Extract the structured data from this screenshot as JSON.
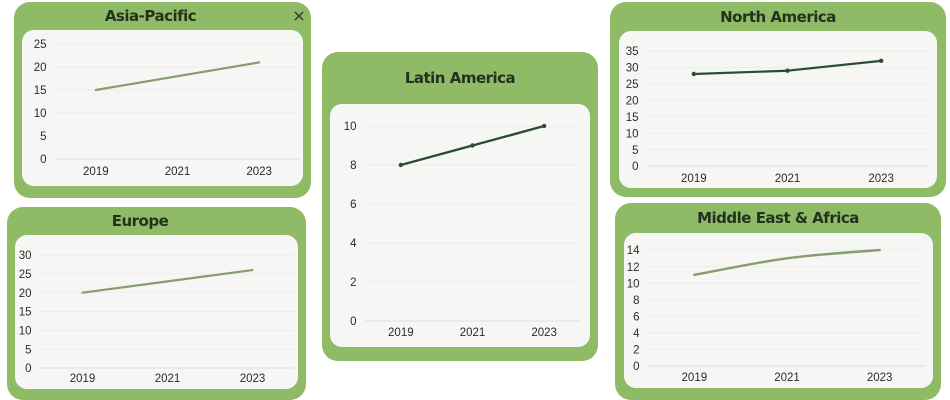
{
  "page": {
    "background": "#ffffff"
  },
  "theme": {
    "card_green": "#90BB66",
    "panel_bg": "#F6F7F5",
    "grid_color": "#ECEDE8",
    "baseline_color": "#DCDFD8",
    "title_color": "#223220",
    "tick_color": "#2B2B2B",
    "close_icon_color": "#333B2D"
  },
  "cards": [
    {
      "title": "Asia-Pacific",
      "has_close_button": true
    },
    {
      "title": "Europe",
      "has_close_button": false
    },
    {
      "title": "Latin America",
      "has_close_button": false
    },
    {
      "title": "North America",
      "has_close_button": false
    },
    {
      "title": "Middle East & Africa",
      "has_close_button": false
    }
  ],
  "chart_data": [
    {
      "type": "line",
      "title": "Asia-Pacific",
      "categories": [
        "2019",
        "2021",
        "2023"
      ],
      "values": [
        15,
        18,
        21
      ],
      "ylim": [
        0,
        25
      ],
      "ytick_step": 5,
      "line_color": "#859E6C",
      "markers": false,
      "grid": true,
      "legend": false,
      "xlabel": "",
      "ylabel": ""
    },
    {
      "type": "line",
      "title": "Europe",
      "categories": [
        "2019",
        "2021",
        "2023"
      ],
      "values": [
        20,
        23,
        26
      ],
      "ylim": [
        0,
        30
      ],
      "ytick_step": 5,
      "line_color": "#859E6C",
      "markers": false,
      "grid": true,
      "legend": false,
      "xlabel": "",
      "ylabel": ""
    },
    {
      "type": "line",
      "title": "Latin America",
      "categories": [
        "2019",
        "2021",
        "2023"
      ],
      "values": [
        8,
        9,
        10
      ],
      "ylim": [
        0,
        10
      ],
      "ytick_step": 2,
      "line_color": "#2D4B34",
      "markers": true,
      "grid": true,
      "legend": false,
      "xlabel": "",
      "ylabel": ""
    },
    {
      "type": "line",
      "title": "North America",
      "categories": [
        "2019",
        "2021",
        "2023"
      ],
      "values": [
        28,
        29,
        32
      ],
      "ylim": [
        0,
        35
      ],
      "ytick_step": 5,
      "line_color": "#2D4B34",
      "markers": true,
      "grid": true,
      "legend": false,
      "xlabel": "",
      "ylabel": ""
    },
    {
      "type": "line",
      "title": "Middle East & Africa",
      "categories": [
        "2019",
        "2021",
        "2023"
      ],
      "values": [
        11,
        13,
        14
      ],
      "ylim": [
        0,
        14
      ],
      "ytick_step": 2,
      "line_color": "#859E6C",
      "markers": false,
      "smooth": true,
      "grid": true,
      "legend": false,
      "xlabel": "",
      "ylabel": ""
    }
  ]
}
